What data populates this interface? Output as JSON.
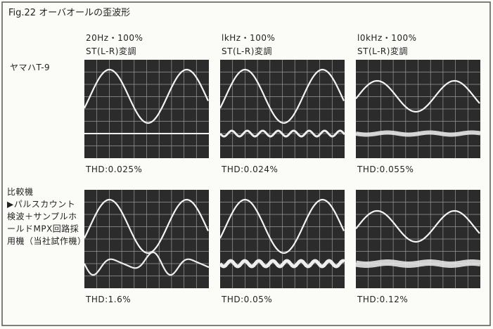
{
  "title": "Fig.22 オーバオールの歪波形",
  "columns": [
    {
      "line1": "20Hz・100%",
      "line2": "ST(L-R)変調"
    },
    {
      "line1": "lkHz・100%",
      "line2": "ST(L-R)変調"
    },
    {
      "line1": "l0kHz・100%",
      "line2": "ST(L-R)変調"
    }
  ],
  "rows": [
    {
      "label": [
        "ヤマハT-9"
      ],
      "thd": [
        "THD:0.025%",
        "THD:0.024%",
        "THD:0.055%"
      ]
    },
    {
      "label": [
        "比較機",
        "▶パルスカウント",
        "検波＋サンプルホ",
        "ールドMPX回路採",
        "用機（当社試作機）"
      ],
      "thd": [
        "THD:1.6%",
        "THD:0.05%",
        "THD:0.12%"
      ]
    }
  ]
}
